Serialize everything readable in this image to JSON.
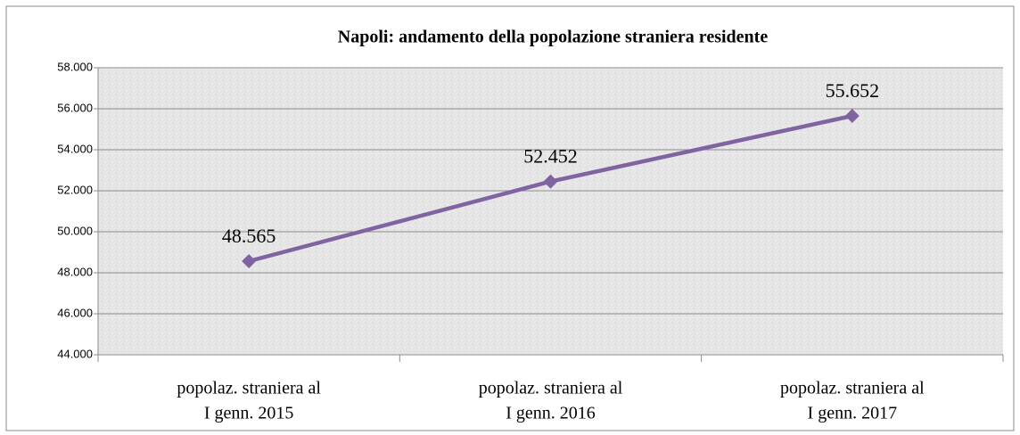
{
  "chart_data": {
    "type": "line",
    "title": "Napoli: andamento  della popolazione straniera residente",
    "categories": [
      [
        "popolaz. straniera al",
        "I genn. 2015"
      ],
      [
        "popolaz. straniera al",
        "I genn. 2016"
      ],
      [
        "popolaz. straniera al",
        "I genn. 2017"
      ]
    ],
    "series": [
      {
        "color": "#8064a2",
        "values": [
          48565,
          52452,
          55652
        ],
        "value_labels": [
          "48.565",
          "52.452",
          "55.652"
        ]
      }
    ],
    "ylim": [
      44000,
      58000
    ],
    "yticks": [
      {
        "value": 44000,
        "label": "44.000"
      },
      {
        "value": 46000,
        "label": "46.000"
      },
      {
        "value": 48000,
        "label": "48.000"
      },
      {
        "value": 50000,
        "label": "50.000"
      },
      {
        "value": 52000,
        "label": "52.000"
      },
      {
        "value": 54000,
        "label": "54.000"
      },
      {
        "value": 56000,
        "label": "56.000"
      },
      {
        "value": 58000,
        "label": "58.000"
      }
    ],
    "grid": true
  }
}
